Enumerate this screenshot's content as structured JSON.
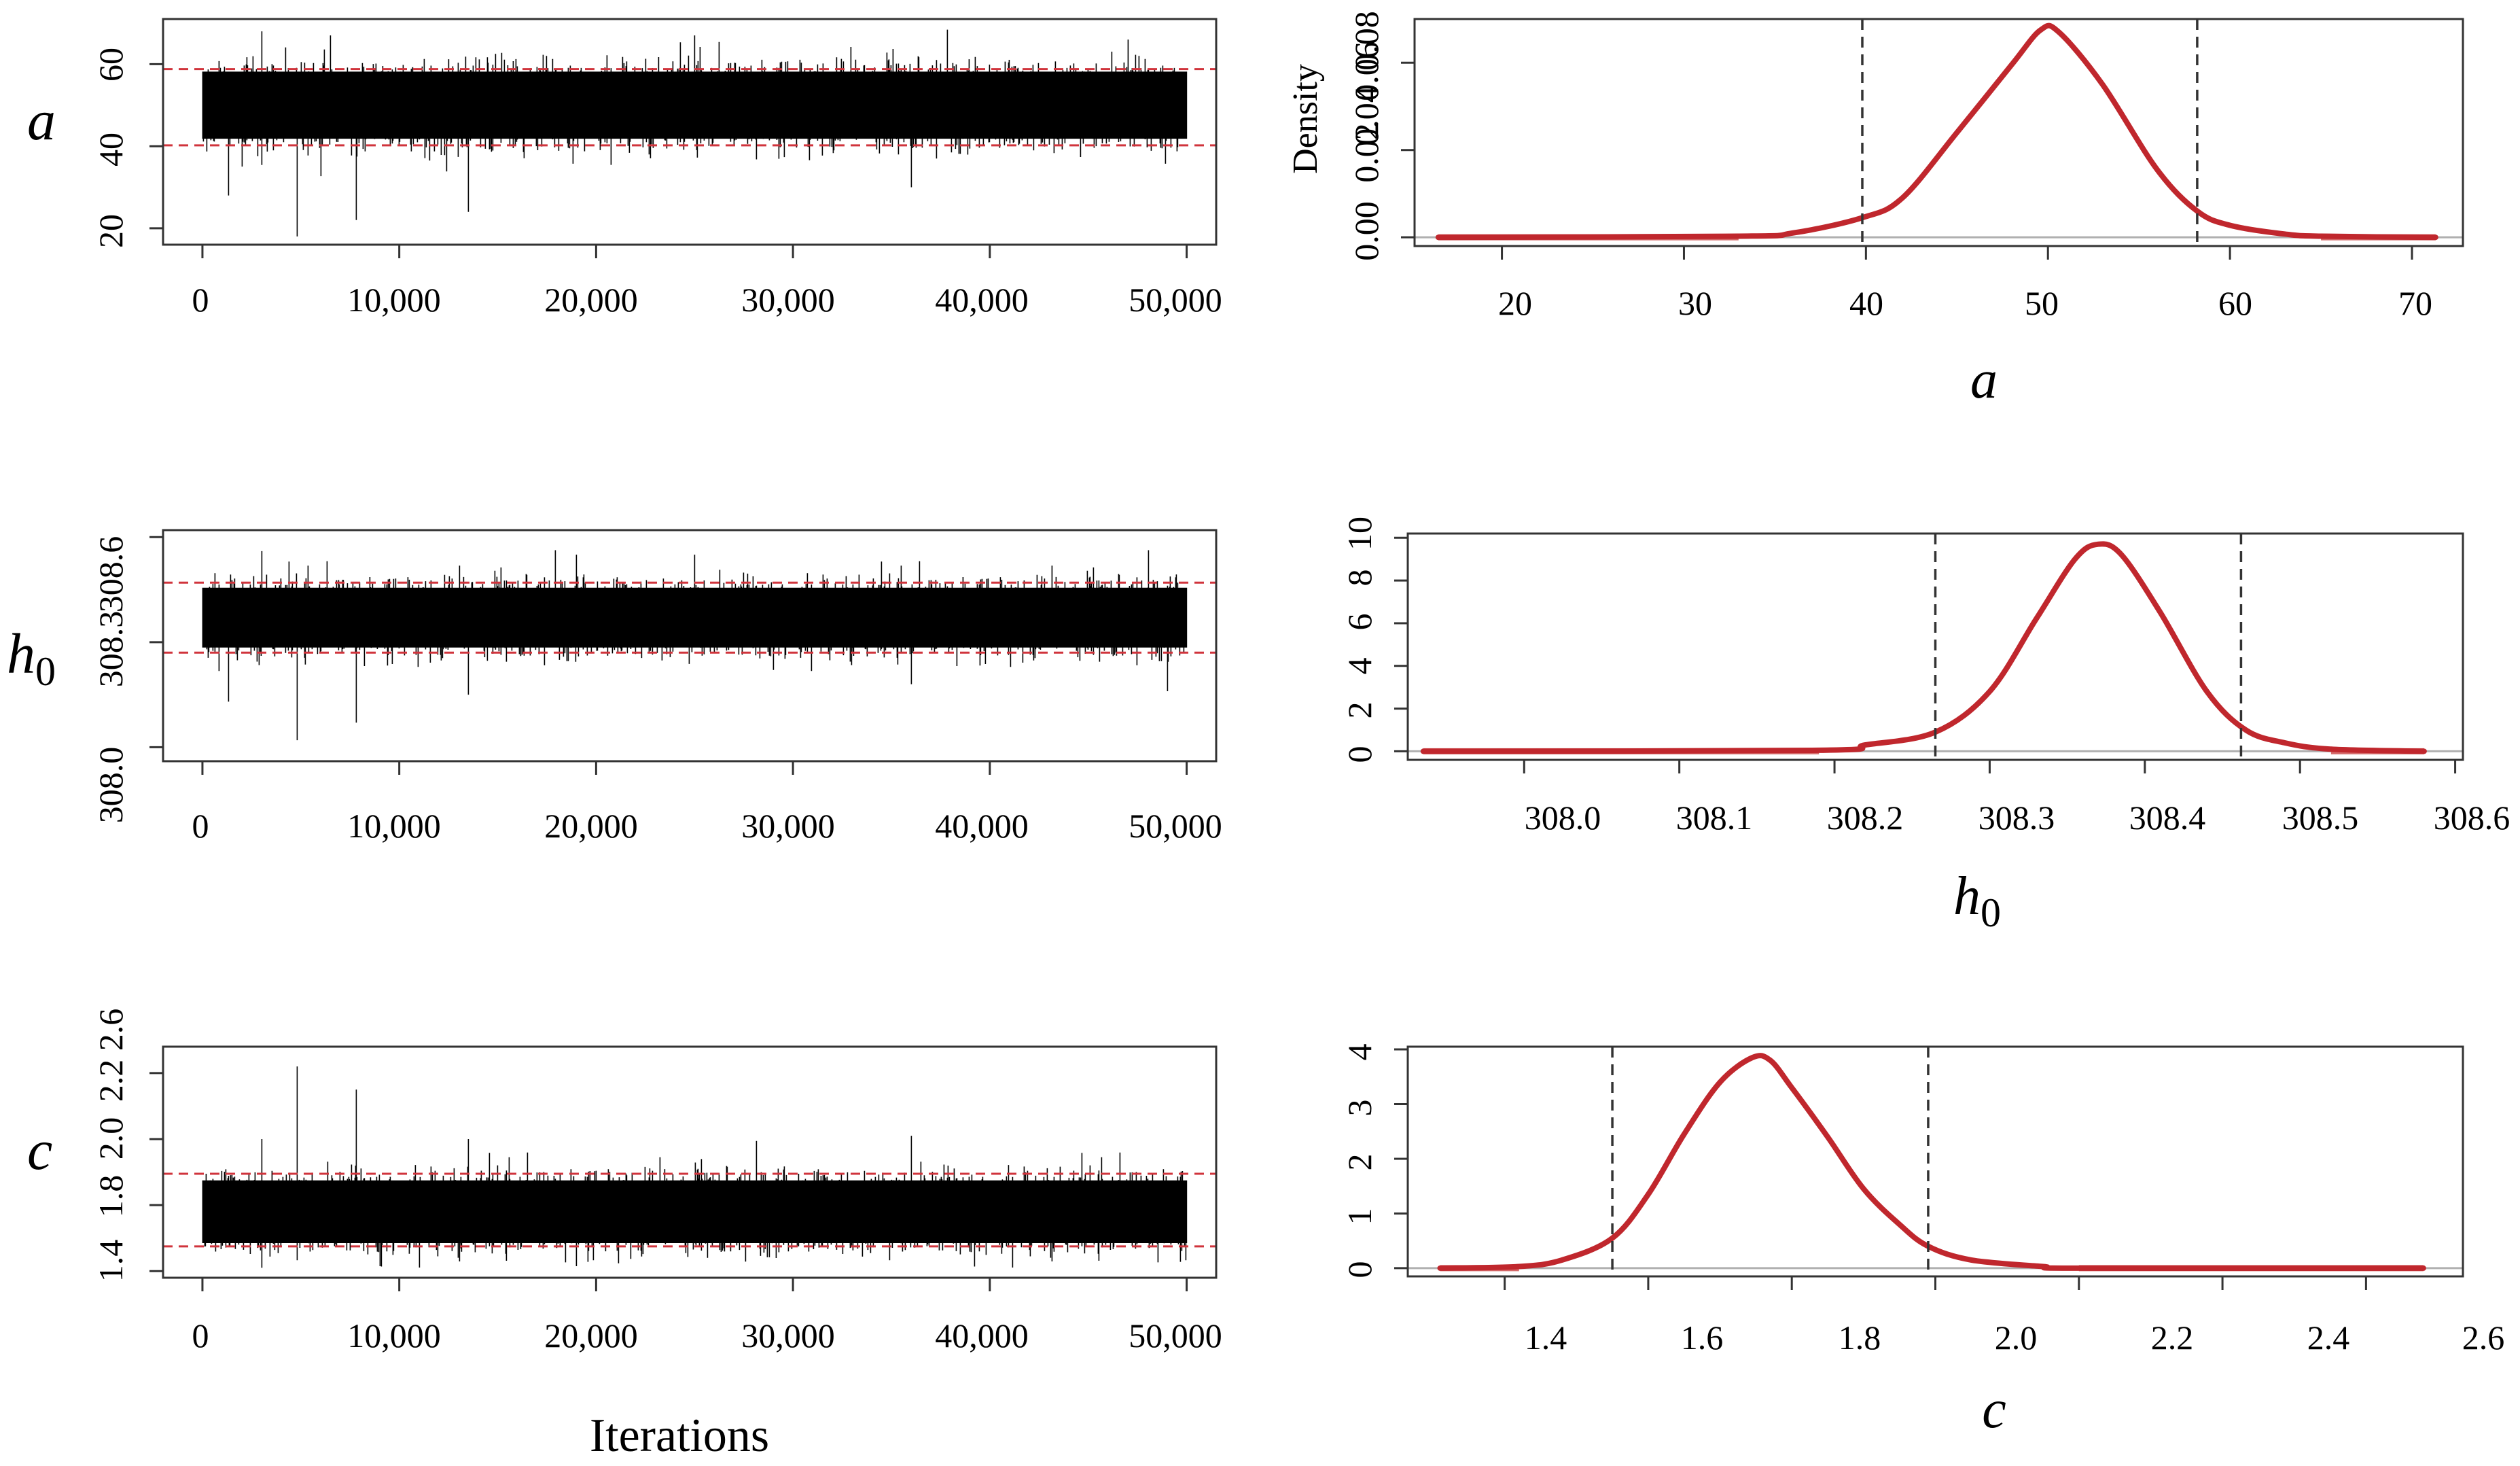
{
  "figure": {
    "x_axis_label": "Iterations",
    "density_ylabel": "Density"
  },
  "colors": {
    "trace": "#000000",
    "interval_line": "#d0343c",
    "density": "#c0272d",
    "density_tail": "#d46a6a",
    "vline": "#333333",
    "baseline": "#b0b0b0"
  },
  "chart_data": [
    {
      "type": "line",
      "title": "a",
      "param": "a",
      "xlabel": "Iterations",
      "ylabel": "",
      "xlim": [
        -2000,
        51500
      ],
      "ylim": [
        16,
        71
      ],
      "xticks": [
        0,
        10000,
        20000,
        30000,
        40000,
        50000
      ],
      "xtick_labels": [
        "0",
        "10,000",
        "20,000",
        "30,000",
        "40,000",
        "50,000"
      ],
      "yticks": [
        20,
        40,
        60
      ],
      "ytick_labels": [
        "20",
        "40",
        "60"
      ],
      "iterations": 50000,
      "mean": 50,
      "sd": 4.3,
      "hpd": [
        40.2,
        58.8
      ],
      "min_spikes": [
        [
          4800,
          18
        ],
        [
          7800,
          22
        ],
        [
          13500,
          24
        ],
        [
          1300,
          28
        ],
        [
          36000,
          30
        ]
      ],
      "max_spikes": [
        [
          3000,
          68
        ],
        [
          6500,
          67
        ],
        [
          25000,
          67
        ],
        [
          47000,
          66
        ]
      ]
    },
    {
      "type": "line",
      "title": "h0",
      "param": "h0",
      "xlabel": "Iterations",
      "ylabel": "",
      "xlim": [
        -2000,
        51500
      ],
      "ylim": [
        307.96,
        308.62
      ],
      "xticks": [
        0,
        10000,
        20000,
        30000,
        40000,
        50000
      ],
      "xtick_labels": [
        "0",
        "10,000",
        "20,000",
        "30,000",
        "40,000",
        "50,000"
      ],
      "yticks": [
        308.0,
        308.3,
        308.6
      ],
      "ytick_labels": [
        "308.0",
        "308.3",
        "308.6"
      ],
      "iterations": 50000,
      "mean": 308.37,
      "sd": 0.045,
      "hpd": [
        308.27,
        308.47
      ],
      "min_spikes": [
        [
          4800,
          308.02
        ],
        [
          7800,
          308.07
        ],
        [
          1300,
          308.13
        ],
        [
          13500,
          308.15
        ],
        [
          36000,
          308.18
        ],
        [
          49000,
          308.16
        ]
      ],
      "max_spikes": [
        [
          3000,
          308.56
        ],
        [
          19000,
          308.55
        ],
        [
          25000,
          308.55
        ]
      ]
    },
    {
      "type": "line",
      "title": "c",
      "param": "c",
      "xlabel": "Iterations",
      "ylabel": "",
      "xlim": [
        -2000,
        51500
      ],
      "ylim": [
        1.36,
        2.76
      ],
      "xticks": [
        0,
        10000,
        20000,
        30000,
        40000,
        50000
      ],
      "xtick_labels": [
        "0",
        "10,000",
        "20,000",
        "30,000",
        "40,000",
        "50,000"
      ],
      "yticks": [
        1.4,
        1.8,
        2.2,
        2.6
      ],
      "ytick_labels": [
        "1.4",
        "1.8",
        "2.2",
        "2.6"
      ],
      "extra_ytick_labels": [
        "2.0"
      ],
      "iterations": 50000,
      "mean": 1.76,
      "sd": 0.1,
      "hpd": [
        1.55,
        1.99
      ],
      "min_spikes": [
        [
          3000,
          1.42
        ],
        [
          9000,
          1.43
        ],
        [
          19000,
          1.43
        ]
      ],
      "max_spikes": [
        [
          4800,
          2.64
        ],
        [
          7800,
          2.5
        ],
        [
          13500,
          2.2
        ],
        [
          36000,
          2.22
        ],
        [
          3000,
          2.2
        ]
      ]
    },
    {
      "type": "area",
      "title": "a",
      "param": "a",
      "xlabel": "a",
      "ylabel": "Density",
      "xlim": [
        15.2,
        72.8
      ],
      "ylim": [
        -0.004,
        0.1
      ],
      "xticks": [
        20,
        30,
        40,
        50,
        60,
        70
      ],
      "xtick_labels": [
        "20",
        "30",
        "40",
        "50",
        "60",
        "70"
      ],
      "yticks": [
        0.0,
        0.04,
        0.08
      ],
      "ytick_labels": [
        "0.00",
        "0.04",
        "0.08"
      ],
      "extra_ytick_labels": [
        "0.02",
        "0.06"
      ],
      "x_range": [
        16.5,
        71.3
      ],
      "curve_points": [
        [
          16.5,
          0.0
        ],
        [
          33.0,
          0.0005
        ],
        [
          36.0,
          0.002
        ],
        [
          39.8,
          0.009
        ],
        [
          42.0,
          0.018
        ],
        [
          45.0,
          0.048
        ],
        [
          48.0,
          0.079
        ],
        [
          49.6,
          0.095
        ],
        [
          50.6,
          0.094
        ],
        [
          53.0,
          0.07
        ],
        [
          56.0,
          0.031
        ],
        [
          58.2,
          0.012
        ],
        [
          60.0,
          0.0055
        ],
        [
          63.0,
          0.0015
        ],
        [
          65.0,
          0.0005
        ],
        [
          71.3,
          0.0
        ]
      ],
      "peak": [
        49.8,
        0.095
      ],
      "vlines": [
        39.8,
        58.2
      ]
    },
    {
      "type": "area",
      "title": "h0",
      "param": "h0",
      "xlabel": "h0",
      "ylabel": "",
      "xlim": [
        307.925,
        308.605
      ],
      "ylim": [
        -0.4,
        10.2
      ],
      "xticks": [
        308.0,
        308.1,
        308.2,
        308.3,
        308.4,
        308.5,
        308.6
      ],
      "xtick_labels": [
        "308.0",
        "308.1",
        "308.2",
        "308.3",
        "308.4",
        "308.5",
        "308.6"
      ],
      "yticks": [
        0,
        2,
        4,
        6,
        8,
        10
      ],
      "ytick_labels": [
        "0",
        "2",
        "4",
        "6",
        "8",
        "10"
      ],
      "x_range": [
        307.935,
        308.58
      ],
      "curve_points": [
        [
          307.935,
          0.0
        ],
        [
          308.19,
          0.05
        ],
        [
          308.22,
          0.3
        ],
        [
          308.265,
          0.9
        ],
        [
          308.3,
          2.8
        ],
        [
          308.33,
          6.2
        ],
        [
          308.355,
          9.0
        ],
        [
          308.37,
          9.7
        ],
        [
          308.385,
          9.2
        ],
        [
          308.41,
          6.5
        ],
        [
          308.44,
          2.8
        ],
        [
          308.465,
          1.0
        ],
        [
          308.49,
          0.4
        ],
        [
          308.52,
          0.1
        ],
        [
          308.58,
          0.0
        ]
      ],
      "peak": [
        308.37,
        9.7
      ],
      "vlines": [
        308.265,
        308.462
      ]
    },
    {
      "type": "area",
      "title": "c",
      "param": "c",
      "xlabel": "c",
      "ylabel": "",
      "xlim": [
        1.265,
        2.735
      ],
      "ylim": [
        -0.15,
        4.05
      ],
      "xticks": [
        1.4,
        1.6,
        1.8,
        2.0,
        2.2,
        2.4,
        2.6
      ],
      "xtick_labels": [
        "1.4",
        "1.6",
        "1.8",
        "2.0",
        "2.2",
        "2.4",
        "2.6"
      ],
      "yticks": [
        0,
        1,
        2,
        3,
        4
      ],
      "ytick_labels": [
        "0",
        "1",
        "2",
        "3",
        "4"
      ],
      "x_range": [
        1.31,
        2.68
      ],
      "curve_points": [
        [
          1.31,
          0.0
        ],
        [
          1.42,
          0.03
        ],
        [
          1.48,
          0.15
        ],
        [
          1.55,
          0.55
        ],
        [
          1.6,
          1.35
        ],
        [
          1.65,
          2.45
        ],
        [
          1.7,
          3.4
        ],
        [
          1.745,
          3.85
        ],
        [
          1.77,
          3.8
        ],
        [
          1.8,
          3.3
        ],
        [
          1.85,
          2.4
        ],
        [
          1.9,
          1.45
        ],
        [
          1.95,
          0.8
        ],
        [
          1.99,
          0.4
        ],
        [
          2.05,
          0.15
        ],
        [
          2.15,
          0.03
        ],
        [
          2.2,
          0.0
        ],
        [
          2.68,
          0.0
        ]
      ],
      "peak": [
        1.755,
        3.85
      ],
      "vlines": [
        1.55,
        1.99
      ]
    }
  ]
}
